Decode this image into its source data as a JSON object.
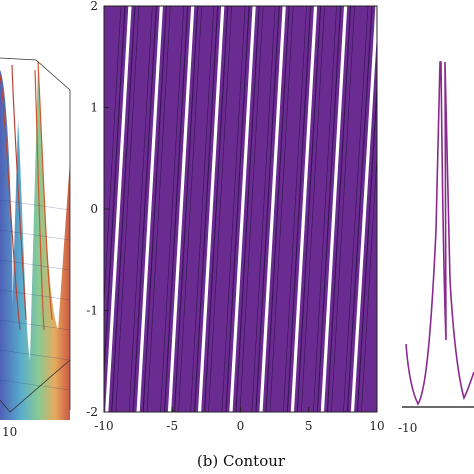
{
  "panels": {
    "left": {
      "tick_labels": [
        "10"
      ]
    },
    "center": {
      "caption": "(b) Contour",
      "x_ticks": [
        "-10",
        "-5",
        "0",
        "5",
        "10"
      ],
      "y_ticks": [
        "2",
        "1",
        "0",
        "-1",
        "-2"
      ]
    },
    "right": {
      "tick_labels": [
        "-10"
      ]
    }
  },
  "chart_data": [
    {
      "type": "surface",
      "panel": "left",
      "colormap": "rainbow",
      "tick_labels": [
        "10"
      ]
    },
    {
      "type": "heatmap",
      "panel": "center",
      "xlim": [
        -10,
        10
      ],
      "ylim": [
        -2,
        2
      ],
      "x_ticks": [
        -10,
        -5,
        0,
        5,
        10
      ],
      "y_ticks": [
        -2,
        -1,
        0,
        1,
        2
      ],
      "fill_color": "#6b2c91",
      "contour_line_color": "#2a0a45",
      "ridge_color": "#ffffff",
      "stripe_x_at_y_minus_2": [
        -9.8,
        -7.5,
        -5.2,
        -3.0,
        -0.7,
        1.5,
        3.8,
        6.0,
        8.2
      ],
      "stripe_x_at_y_plus_2": [
        -8.1,
        -5.8,
        -3.5,
        -1.3,
        1.0,
        3.2,
        5.5,
        7.7,
        10.0
      ]
    },
    {
      "type": "line",
      "panel": "right",
      "line_color": "#8a2a8f",
      "x_ticks": [
        -10
      ]
    }
  ]
}
